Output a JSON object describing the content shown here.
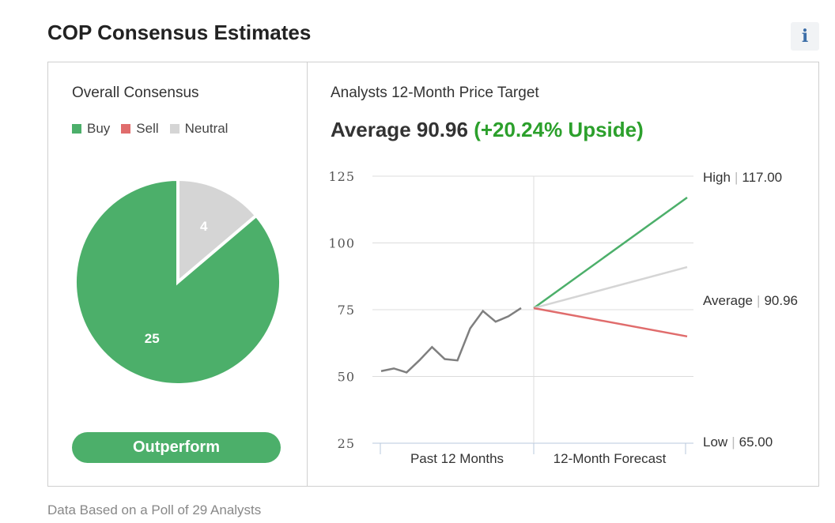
{
  "header": {
    "title": "COP Consensus Estimates",
    "info_icon": "info-icon"
  },
  "consensus": {
    "heading": "Overall Consensus",
    "legend": [
      {
        "label": "Buy",
        "color": "#4caf6a"
      },
      {
        "label": "Sell",
        "color": "#e06c6c"
      },
      {
        "label": "Neutral",
        "color": "#d5d5d5"
      }
    ],
    "rating": "Outperform"
  },
  "price_target": {
    "heading": "Analysts 12-Month Price Target",
    "average_label": "Average 90.96",
    "upside_label": "(+20.24% Upside)",
    "high_label": "High",
    "high_value": "117.00",
    "avg_label": "Average",
    "avg_value": "90.96",
    "low_label": "Low",
    "low_value": "65.00"
  },
  "chart_data": [
    {
      "type": "pie",
      "labels": [
        "Buy",
        "Sell",
        "Neutral"
      ],
      "values": [
        25,
        0,
        4
      ],
      "colors": [
        "#4caf6a",
        "#e06c6c",
        "#d5d5d5"
      ]
    },
    {
      "type": "line",
      "xlabels": [
        "Past 12 Months",
        "12-Month Forecast"
      ],
      "ylim": [
        25,
        125
      ],
      "yticks": [
        125,
        100,
        75,
        50,
        25
      ],
      "grid": true,
      "past_prices": [
        52,
        53,
        51.5,
        56,
        61,
        56.5,
        56,
        68,
        74.5,
        70.5,
        72.5,
        75.6
      ],
      "forecast_start": 75.6,
      "forecast": [
        {
          "label": "High",
          "value": 117.0,
          "color": "#4caf6a"
        },
        {
          "label": "Average",
          "value": 90.96,
          "color": "#d5d5d5"
        },
        {
          "label": "Low",
          "value": 65.0,
          "color": "#e06c6c"
        }
      ],
      "past_color": "#7f7f7f"
    }
  ],
  "footer": {
    "note": "Data Based on a Poll of 29 Analysts"
  }
}
